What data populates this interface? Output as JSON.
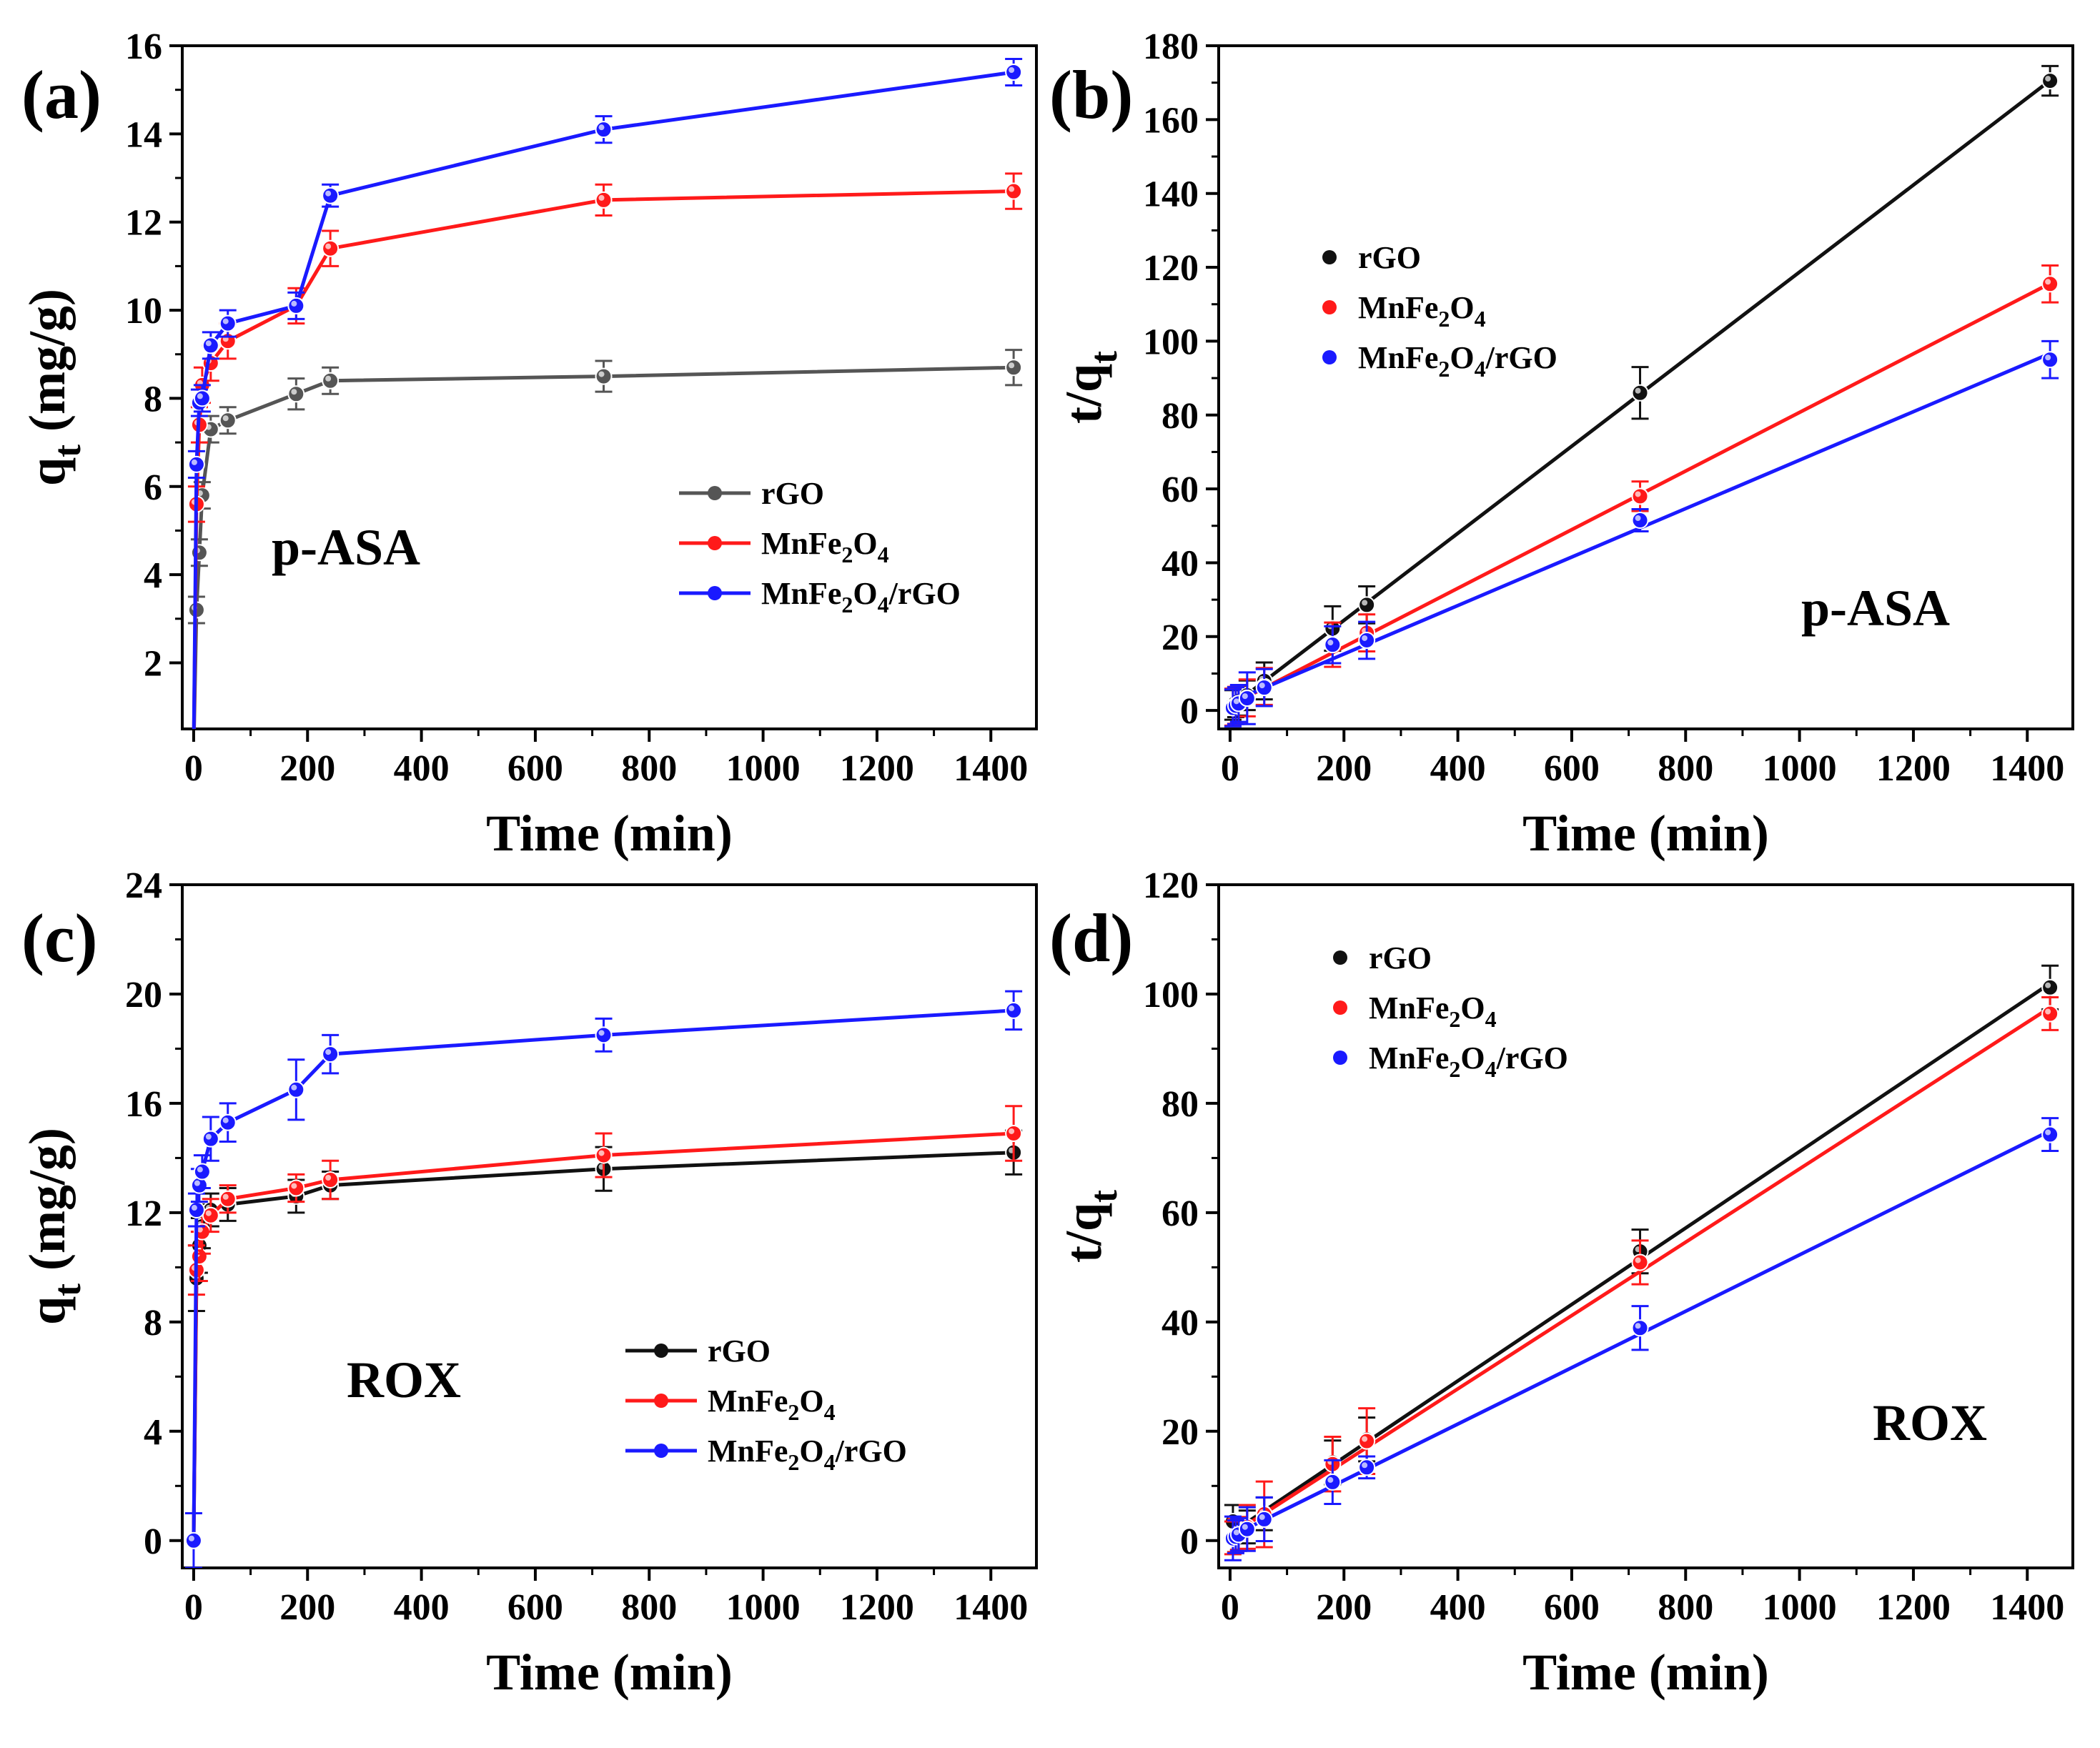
{
  "figure": {
    "panel_count": 4
  },
  "chart_data": [
    {
      "panel": "(a)",
      "type": "line",
      "annotation": "p-ASA",
      "xlabel": "Time (min)",
      "ylabel_main": "q",
      "ylabel_sub": "t",
      "ylabel_unit": "(mg/g)",
      "xlim": [
        -20,
        1480
      ],
      "ylim": [
        0.5,
        16
      ],
      "xticks": [
        0,
        200,
        400,
        600,
        800,
        1000,
        1200,
        1400
      ],
      "yticks": [
        2,
        4,
        6,
        8,
        10,
        12,
        14,
        16
      ],
      "legend_position": "bottom-right",
      "connect": "lines",
      "series": [
        {
          "name": "rGO",
          "color": "#555555",
          "fit": false,
          "x": [
            0,
            5,
            10,
            15,
            30,
            60,
            180,
            240,
            720,
            1440
          ],
          "y": [
            0,
            3.2,
            4.5,
            5.8,
            7.3,
            7.5,
            8.1,
            8.4,
            8.5,
            8.7
          ],
          "err": [
            0,
            0.3,
            0.3,
            0.3,
            0.3,
            0.3,
            0.35,
            0.3,
            0.35,
            0.4
          ]
        },
        {
          "name": "MnFe₂O₄",
          "name_main": "MnFe",
          "name_parts": [
            [
              "MnFe",
              ""
            ],
            [
              "2",
              "sub"
            ],
            [
              "O",
              ""
            ],
            [
              "4",
              "sub"
            ]
          ],
          "color": "#ff1a1a",
          "fit": false,
          "x": [
            0,
            5,
            10,
            15,
            30,
            60,
            180,
            240,
            720,
            1440
          ],
          "y": [
            0,
            5.6,
            7.4,
            8.3,
            8.8,
            9.3,
            10.1,
            11.4,
            12.5,
            12.7
          ],
          "err": [
            0,
            0.4,
            0.4,
            0.4,
            0.4,
            0.4,
            0.4,
            0.4,
            0.35,
            0.4
          ]
        },
        {
          "name": "MnFe₂O₄/rGO",
          "name_parts": [
            [
              "MnFe",
              ""
            ],
            [
              "2",
              "sub"
            ],
            [
              "O",
              ""
            ],
            [
              "4",
              "sub"
            ],
            [
              "/rGO",
              ""
            ]
          ],
          "color": "#1a1aff",
          "fit": false,
          "x": [
            0,
            5,
            10,
            15,
            30,
            60,
            180,
            240,
            720,
            1440
          ],
          "y": [
            0,
            6.5,
            7.9,
            8.0,
            9.2,
            9.7,
            10.1,
            12.6,
            14.1,
            15.4
          ],
          "err": [
            0,
            0.3,
            0.3,
            0.3,
            0.3,
            0.3,
            0.3,
            0.25,
            0.3,
            0.3
          ]
        }
      ]
    },
    {
      "panel": "(b)",
      "type": "scatter",
      "annotation": "p-ASA",
      "xlabel": "Time (min)",
      "ylabel_main": "t/q",
      "ylabel_sub": "t",
      "ylabel_unit": "",
      "xlim": [
        -20,
        1480
      ],
      "ylim": [
        -5,
        180
      ],
      "xticks": [
        0,
        200,
        400,
        600,
        800,
        1000,
        1200,
        1400
      ],
      "yticks": [
        0,
        20,
        40,
        60,
        80,
        100,
        120,
        140,
        160,
        180
      ],
      "legend_position": "top-left",
      "connect": "fit",
      "series": [
        {
          "name": "rGO",
          "color": "#111111",
          "fit": true,
          "x": [
            5,
            10,
            15,
            30,
            60,
            180,
            240,
            720,
            1440
          ],
          "y": [
            1.5,
            2.2,
            2.6,
            4.1,
            8.0,
            22.2,
            28.6,
            86.0,
            170.5
          ],
          "err": [
            4,
            4,
            4,
            4,
            5,
            6,
            5,
            7,
            4
          ]
        },
        {
          "name": "MnFe₂O₄",
          "name_parts": [
            [
              "MnFe",
              ""
            ],
            [
              "2",
              "sub"
            ],
            [
              "O",
              ""
            ],
            [
              "4",
              "sub"
            ]
          ],
          "color": "#ff1a1a",
          "fit": true,
          "x": [
            5,
            10,
            15,
            30,
            60,
            180,
            240,
            720,
            1440
          ],
          "y": [
            0.9,
            1.4,
            1.8,
            3.4,
            6.5,
            17.8,
            21.0,
            58.0,
            115.5
          ],
          "err": [
            5,
            5,
            5,
            5,
            5,
            6,
            5,
            4,
            5
          ]
        },
        {
          "name": "MnFe₂O₄/rGO",
          "name_parts": [
            [
              "MnFe",
              ""
            ],
            [
              "2",
              "sub"
            ],
            [
              "O",
              ""
            ],
            [
              "4",
              "sub"
            ],
            [
              "/rGO",
              ""
            ]
          ],
          "color": "#1a1aff",
          "fit": true,
          "x": [
            5,
            10,
            15,
            30,
            60,
            180,
            240,
            720,
            1440
          ],
          "y": [
            0.7,
            1.3,
            1.9,
            3.3,
            6.2,
            17.8,
            19.0,
            51.5,
            95.0
          ],
          "err": [
            5,
            5,
            5,
            7,
            5,
            5,
            5,
            3,
            5
          ]
        }
      ]
    },
    {
      "panel": "(c)",
      "type": "line",
      "annotation": "ROX",
      "xlabel": "Time (min)",
      "ylabel_main": "q",
      "ylabel_sub": "t",
      "ylabel_unit": "(mg/g)",
      "xlim": [
        -20,
        1480
      ],
      "ylim": [
        -1,
        24
      ],
      "xticks": [
        0,
        200,
        400,
        600,
        800,
        1000,
        1200,
        1400
      ],
      "yticks": [
        0,
        4,
        8,
        12,
        16,
        20,
        24
      ],
      "legend_position": "bottom-right",
      "connect": "lines",
      "series": [
        {
          "name": "rGO",
          "color": "#111111",
          "fit": false,
          "x": [
            0,
            5,
            10,
            15,
            30,
            60,
            180,
            240,
            720,
            1440
          ],
          "y": [
            0,
            9.6,
            10.8,
            11.5,
            12.1,
            12.3,
            12.6,
            13.0,
            13.6,
            14.2
          ],
          "err": [
            0,
            1.2,
            1.0,
            0.8,
            0.6,
            0.6,
            0.6,
            0.5,
            0.8,
            0.8
          ]
        },
        {
          "name": "MnFe₂O₄",
          "name_parts": [
            [
              "MnFe",
              ""
            ],
            [
              "2",
              "sub"
            ],
            [
              "O",
              ""
            ],
            [
              "4",
              "sub"
            ]
          ],
          "color": "#ff1a1a",
          "fit": false,
          "x": [
            0,
            5,
            10,
            15,
            30,
            60,
            180,
            240,
            720,
            1440
          ],
          "y": [
            0,
            9.9,
            10.4,
            11.3,
            11.9,
            12.5,
            12.9,
            13.2,
            14.1,
            14.9
          ],
          "err": [
            0,
            0.9,
            0.9,
            0.8,
            0.6,
            0.5,
            0.5,
            0.7,
            0.8,
            1.0
          ]
        },
        {
          "name": "MnFe₂O₄/rGO",
          "name_parts": [
            [
              "MnFe",
              ""
            ],
            [
              "2",
              "sub"
            ],
            [
              "O",
              ""
            ],
            [
              "4",
              "sub"
            ],
            [
              "/rGO",
              ""
            ]
          ],
          "color": "#1a1aff",
          "fit": false,
          "x": [
            0,
            5,
            10,
            15,
            30,
            60,
            180,
            240,
            720,
            1440
          ],
          "y": [
            0,
            12.1,
            13.0,
            13.5,
            14.7,
            15.3,
            16.5,
            17.8,
            18.5,
            19.4
          ],
          "err": [
            1.0,
            0.6,
            0.6,
            0.6,
            0.8,
            0.7,
            1.1,
            0.7,
            0.6,
            0.7
          ]
        }
      ]
    },
    {
      "panel": "(d)",
      "type": "scatter",
      "annotation": "ROX",
      "xlabel": "Time (min)",
      "ylabel_main": "t/q",
      "ylabel_sub": "t",
      "ylabel_unit": "",
      "xlim": [
        -20,
        1480
      ],
      "ylim": [
        -5,
        120
      ],
      "xticks": [
        0,
        200,
        400,
        600,
        800,
        1000,
        1200,
        1400
      ],
      "yticks": [
        0,
        20,
        40,
        60,
        80,
        100,
        120
      ],
      "legend_position": "top-left",
      "connect": "fit",
      "series": [
        {
          "name": "rGO",
          "color": "#111111",
          "fit": true,
          "x": [
            5,
            10,
            15,
            30,
            60,
            180,
            240,
            720,
            1440
          ],
          "y": [
            3.5,
            0.9,
            1.3,
            2.5,
            4.9,
            14.3,
            18.5,
            52.9,
            101.2
          ],
          "err": [
            3,
            3,
            3,
            3,
            3,
            4,
            4,
            4,
            4
          ]
        },
        {
          "name": "MnFe₂O₄",
          "name_parts": [
            [
              "MnFe",
              ""
            ],
            [
              "2",
              "sub"
            ],
            [
              "O",
              ""
            ],
            [
              "4",
              "sub"
            ]
          ],
          "color": "#ff1a1a",
          "fit": true,
          "x": [
            5,
            10,
            15,
            30,
            60,
            180,
            240,
            720,
            1440
          ],
          "y": [
            0.5,
            0.9,
            1.3,
            2.5,
            4.8,
            14.0,
            18.2,
            50.9,
            96.4
          ],
          "err": [
            3,
            3,
            3,
            4,
            6,
            5,
            6,
            4,
            3
          ]
        },
        {
          "name": "MnFe₂O₄/rGO",
          "name_parts": [
            [
              "MnFe",
              ""
            ],
            [
              "2",
              "sub"
            ],
            [
              "O",
              ""
            ],
            [
              "4",
              "sub"
            ],
            [
              "/rGO",
              ""
            ]
          ],
          "color": "#1a1aff",
          "fit": true,
          "x": [
            5,
            10,
            15,
            30,
            60,
            180,
            240,
            720,
            1440
          ],
          "y": [
            0.4,
            0.7,
            1.1,
            2.1,
            3.9,
            10.7,
            13.4,
            38.9,
            74.3
          ],
          "err": [
            4,
            3,
            3,
            4,
            4,
            4,
            2,
            4,
            3
          ]
        }
      ]
    }
  ]
}
